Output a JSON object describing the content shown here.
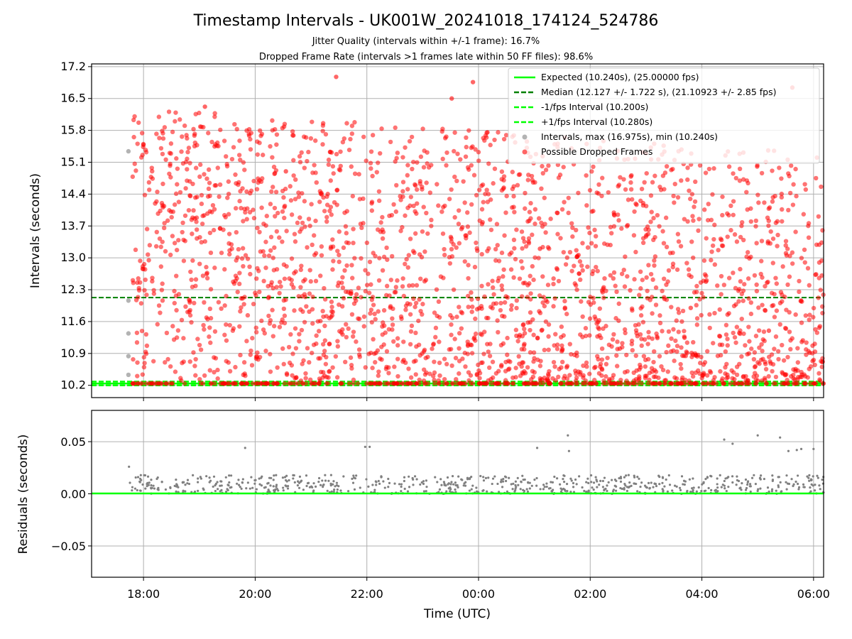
{
  "chart_data": [
    {
      "type": "scatter",
      "title": "Timestamp Intervals - UK001W_20241018_174124_524786",
      "subtitle_lines": [
        "Jitter Quality (intervals within +/-1 frame): 16.7%",
        "Dropped Frame Rate (intervals >1 frames late within 50 FF files): 98.6%"
      ],
      "ylabel": "Intervals (seconds)",
      "xlabel": "",
      "ylim": [
        9.93,
        17.26
      ],
      "xlim_hours": [
        17.07,
        30.18
      ],
      "yticks": [
        "10.2",
        "10.9",
        "11.6",
        "12.3",
        "13.0",
        "13.7",
        "14.4",
        "15.1",
        "15.8",
        "16.5",
        "17.2"
      ],
      "xticks": [
        "18:00",
        "20:00",
        "22:00",
        "00:00",
        "02:00",
        "04:00",
        "06:00"
      ],
      "grid": true,
      "legend_position": "top-right",
      "legend": [
        "Expected (10.240s), (25.00000 fps)",
        "Median (12.127 +/- 1.722 s), (21.10923 +/- 2.85 fps)",
        "-1/fps Interval (10.200s)",
        "+1/fps Interval (10.280s)",
        "Intervals, max (16.975s), min (10.240s)",
        "Possible Dropped Frames"
      ],
      "reference_lines": {
        "expected": 10.24,
        "median": 12.127,
        "minus_one_fps": 10.2,
        "plus_one_fps": 10.28
      },
      "series": [
        {
          "name": "Intervals, max (16.975s), min (10.240s)",
          "color": "#808080",
          "points": [
            [
              17.73,
              15.34
            ],
            [
              17.73,
              12.06
            ],
            [
              17.73,
              11.34
            ],
            [
              17.73,
              10.84
            ],
            [
              17.73,
              10.43
            ]
          ]
        },
        {
          "name": "Possible Dropped Frames",
          "color": "#ff0000",
          "approx_count": 2900,
          "time_range": [
            "17:48",
            "06:11"
          ],
          "value_range": [
            10.24,
            16.975
          ],
          "baseline_value": 10.24,
          "sample_points": [
            [
              21.45,
              16.975
            ],
            [
              23.9,
              16.86
            ],
            [
              23.52,
              16.5
            ],
            [
              19.1,
              16.32
            ],
            [
              29.62,
              16.74
            ],
            [
              20.55,
              14.9
            ],
            [
              25.1,
              13.2
            ],
            [
              27.8,
              11.9
            ],
            [
              29.2,
              11.4
            ]
          ]
        }
      ]
    },
    {
      "type": "scatter",
      "title": "",
      "ylabel": "Residuals (seconds)",
      "xlabel": "Time (UTC)",
      "ylim": [
        -0.08,
        0.08
      ],
      "yticks": [
        "0.05",
        "0.00",
        "−0.05"
      ],
      "xticks": [
        "18:00",
        "20:00",
        "22:00",
        "00:00",
        "02:00",
        "04:00",
        "06:00"
      ],
      "grid": true,
      "zero_line_color": "#00ff00",
      "series": [
        {
          "name": "",
          "color": "#808080",
          "value_range": [
            0.0,
            0.056
          ],
          "sample_points": [
            [
              17.74,
              0.026
            ],
            [
              19.82,
              0.044
            ],
            [
              21.97,
              0.045
            ],
            [
              22.05,
              0.045
            ],
            [
              25.05,
              0.044
            ],
            [
              25.6,
              0.056
            ],
            [
              25.62,
              0.041
            ],
            [
              28.4,
              0.052
            ],
            [
              28.55,
              0.048
            ],
            [
              29.0,
              0.056
            ],
            [
              29.4,
              0.054
            ],
            [
              29.55,
              0.041
            ],
            [
              29.7,
              0.042
            ],
            [
              30.0,
              0.043
            ],
            [
              29.78,
              0.043
            ]
          ]
        }
      ]
    }
  ]
}
